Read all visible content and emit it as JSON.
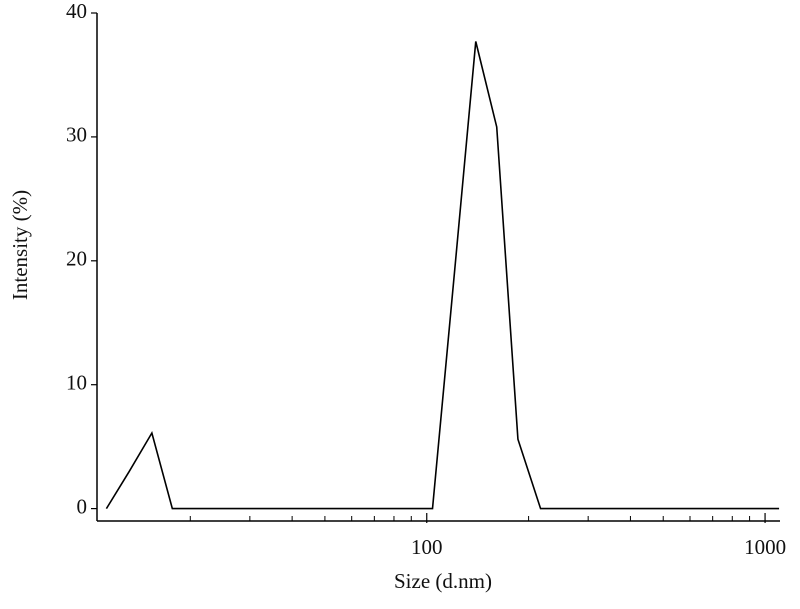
{
  "chart_data": {
    "type": "line",
    "xlabel": "Size (d.nm)",
    "ylabel": "Intensity (%)",
    "xscale": "log",
    "x": [
      11.3,
      13.2,
      15.4,
      17.7,
      104,
      121,
      139.6,
      161,
      186,
      217,
      1100
    ],
    "series": [
      {
        "color": "#000000",
        "values": [
          0,
          3,
          6.1,
          0,
          0,
          19.3,
          37.7,
          30.8,
          5.6,
          0,
          0
        ]
      }
    ],
    "xlim": [
      10.6,
      1107
    ],
    "xticks": [
      100,
      1000
    ],
    "xminorticks": [
      20,
      30,
      40,
      50,
      60,
      70,
      80,
      90,
      200,
      300,
      400,
      500,
      600,
      700,
      800,
      900
    ],
    "ylim": [
      -1,
      40
    ],
    "yticks": [
      0,
      10,
      20,
      30,
      40
    ]
  }
}
